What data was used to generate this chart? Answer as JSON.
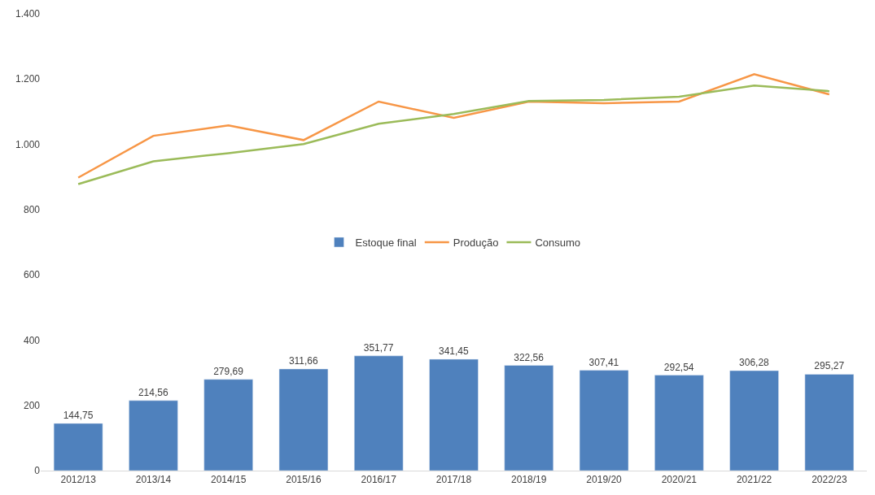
{
  "chart_data": {
    "type": "bar",
    "categories": [
      "2012/13",
      "2013/14",
      "2014/15",
      "2015/16",
      "2016/17",
      "2017/18",
      "2018/19",
      "2019/20",
      "2020/21",
      "2021/22",
      "2022/23"
    ],
    "series": [
      {
        "name": "Estoque final",
        "color": "#4f81bd",
        "values": [
          144.75,
          214.56,
          279.69,
          311.66,
          351.77,
          341.45,
          322.56,
          307.41,
          292.54,
          306.28,
          295.27
        ],
        "value_labels": [
          "144,75",
          "214,56",
          "279,69",
          "311,66",
          "351,77",
          "341,45",
          "322,56",
          "307,41",
          "292,54",
          "306,28",
          "295,27"
        ]
      },
      {
        "name": "Produção",
        "type": "line",
        "color": "#f79646",
        "values": [
          898,
          1026,
          1058,
          1013,
          1131,
          1081,
          1131,
          1126,
          1131,
          1215,
          1153
        ]
      },
      {
        "name": "Consumo",
        "type": "line",
        "color": "#9bbb59",
        "values": [
          878,
          948,
          973,
          1001,
          1063,
          1093,
          1133,
          1136,
          1146,
          1180,
          1163
        ]
      }
    ],
    "ylim": [
      0,
      1400
    ],
    "yticks": [
      0,
      200,
      400,
      600,
      800,
      {
        "value": 1000,
        "label": "1.000"
      },
      {
        "value": 1200,
        "label": "1.200"
      },
      {
        "value": 1400,
        "label": "1.400"
      }
    ],
    "grid": false,
    "legend": "center",
    "marker": "none",
    "line_style": "solid"
  }
}
